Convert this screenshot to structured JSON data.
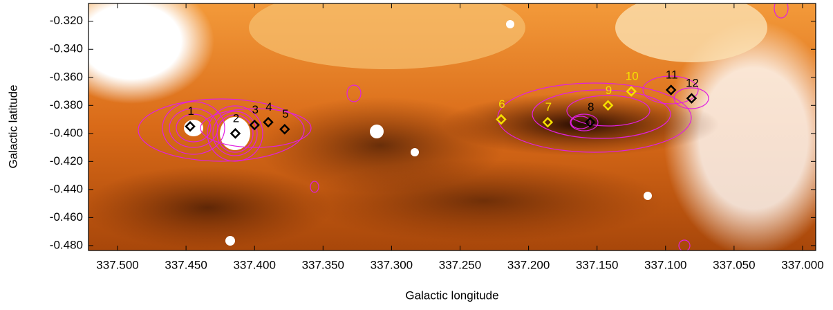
{
  "chart_data": {
    "type": "scatter",
    "xlabel": "Galactic longitude",
    "ylabel": "Galactic latitude",
    "xlim": [
      337.5212,
      336.9904
    ],
    "ylim": [
      -0.4835,
      -0.3073
    ],
    "xticks": [
      {
        "value": 337.5,
        "label": "337.500"
      },
      {
        "value": 337.45,
        "label": "337.450"
      },
      {
        "value": 337.4,
        "label": "337.400"
      },
      {
        "value": 337.35,
        "label": "337.350"
      },
      {
        "value": 337.3,
        "label": "337.300"
      },
      {
        "value": 337.25,
        "label": "337.250"
      },
      {
        "value": 337.2,
        "label": "337.200"
      },
      {
        "value": 337.15,
        "label": "337.150"
      },
      {
        "value": 337.1,
        "label": "337.100"
      },
      {
        "value": 337.05,
        "label": "337.050"
      },
      {
        "value": 337.0,
        "label": "337.000"
      }
    ],
    "yticks": [
      {
        "value": -0.32,
        "label": "-0.320"
      },
      {
        "value": -0.34,
        "label": "-0.340"
      },
      {
        "value": -0.36,
        "label": "-0.360"
      },
      {
        "value": -0.38,
        "label": "-0.380"
      },
      {
        "value": -0.4,
        "label": "-0.400"
      },
      {
        "value": -0.42,
        "label": "-0.420"
      },
      {
        "value": -0.44,
        "label": "-0.440"
      },
      {
        "value": -0.46,
        "label": "-0.460"
      },
      {
        "value": -0.48,
        "label": "-0.480"
      }
    ],
    "x": [
      337.447,
      337.414,
      337.4,
      337.39,
      337.378,
      337.22,
      337.186,
      337.155,
      337.142,
      337.125,
      337.096,
      337.081
    ],
    "y": [
      -0.395,
      -0.4,
      -0.394,
      -0.392,
      -0.397,
      -0.39,
      -0.392,
      -0.392,
      -0.38,
      -0.37,
      -0.369,
      -0.375
    ],
    "point_labels": [
      "1",
      "2",
      "3",
      "4",
      "5",
      "6",
      "7",
      "8",
      "9",
      "10",
      "11",
      "12"
    ],
    "point_colors": [
      "#000000",
      "#000000",
      "#000000",
      "#000000",
      "#000000",
      "#f5e100",
      "#f5e100",
      "#000000",
      "#f5e100",
      "#f5e100",
      "#000000",
      "#000000"
    ]
  }
}
